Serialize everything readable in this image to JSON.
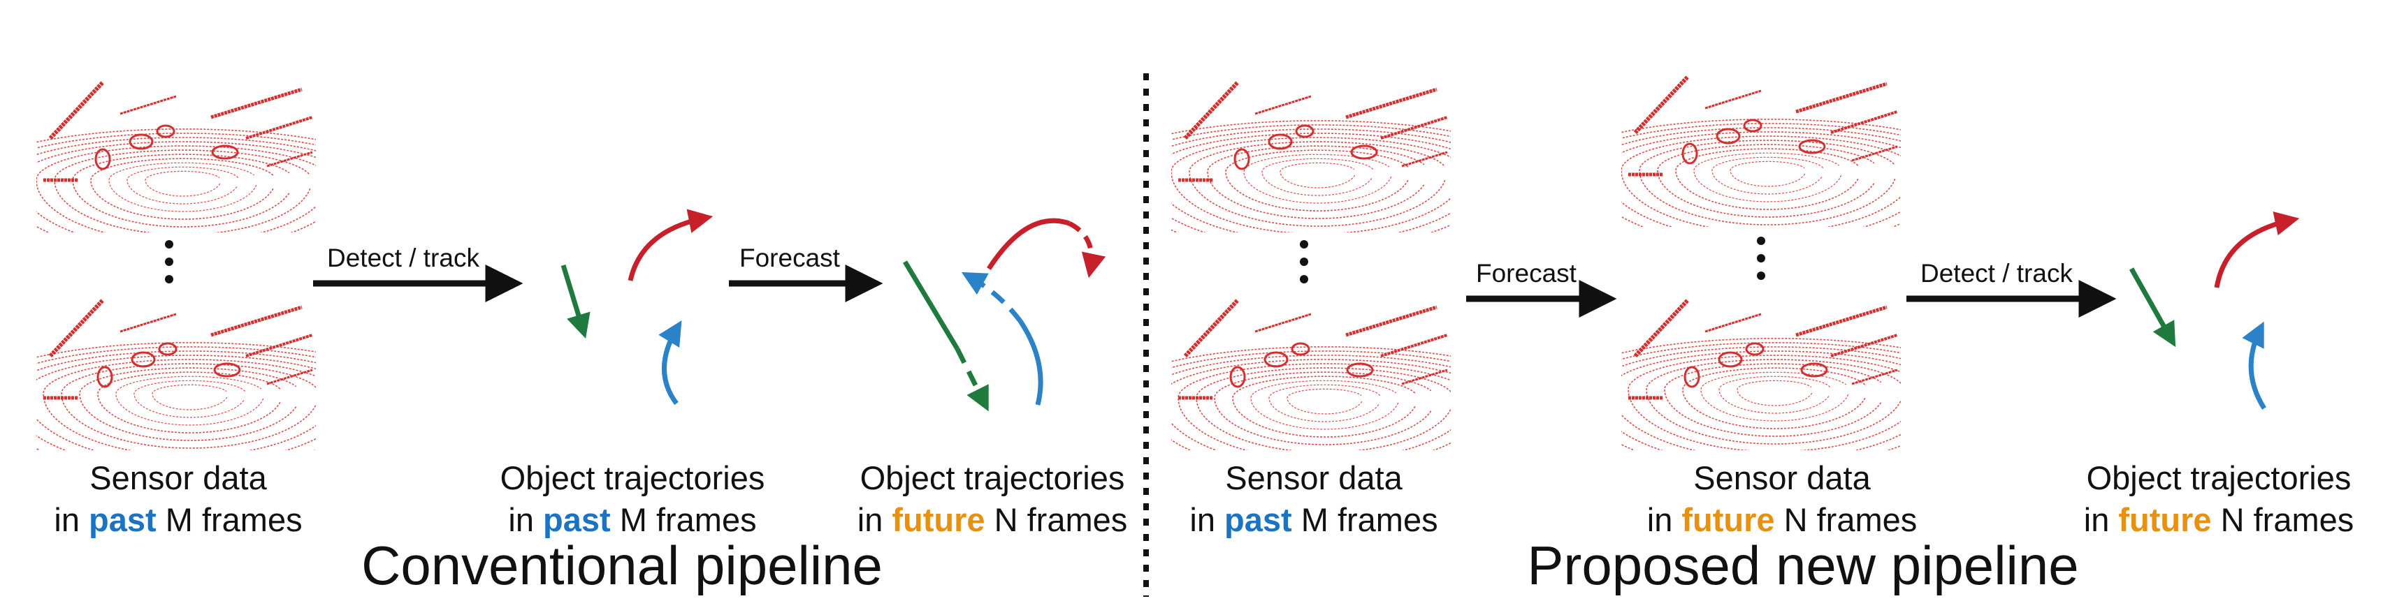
{
  "colors": {
    "past": "#1b73c4",
    "future": "#e8900f",
    "traj_red": "#c8202a",
    "traj_green": "#1f7a3e",
    "traj_blue": "#2a82c9",
    "pointcloud": "#d32f2f"
  },
  "conventional": {
    "title": "Conventional pipeline",
    "sensor_label": {
      "line1": "Sensor data",
      "pre": "in ",
      "keyword": "past",
      "post": " M frames"
    },
    "arrow1_label": "Detect / track",
    "traj_past_label": {
      "line1": "Object trajectories",
      "pre": "in ",
      "keyword": "past",
      "post": " M frames"
    },
    "arrow2_label": "Forecast",
    "traj_future_label": {
      "line1": "Object trajectories",
      "pre": "in ",
      "keyword": "future",
      "post": " N frames"
    }
  },
  "proposed": {
    "title": "Proposed new pipeline",
    "sensor_past_label": {
      "line1": "Sensor data",
      "pre": "in ",
      "keyword": "past",
      "post": " M frames"
    },
    "arrow1_label": "Forecast",
    "sensor_future_label": {
      "line1": "Sensor data",
      "pre": "in ",
      "keyword": "future",
      "post": " N frames"
    },
    "arrow2_label": "Detect / track",
    "traj_future_label": {
      "line1": "Object trajectories",
      "pre": "in ",
      "keyword": "future",
      "post": " N frames"
    }
  }
}
